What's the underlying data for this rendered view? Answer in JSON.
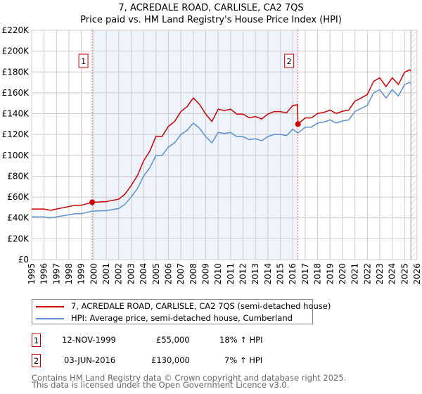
{
  "chart_data": {
    "type": "line",
    "title": "7, ACREDALE ROAD, CARLISLE, CA2 7QS",
    "subtitle": "Price paid vs. HM Land Registry's House Price Index (HPI)",
    "xlim": [
      1995,
      2026
    ],
    "ylim": [
      0,
      220000
    ],
    "x_ticks": [
      "1995",
      "1996",
      "1997",
      "1998",
      "1999",
      "2000",
      "2001",
      "2002",
      "2003",
      "2004",
      "2005",
      "2006",
      "2007",
      "2008",
      "2009",
      "2010",
      "2011",
      "2012",
      "2013",
      "2014",
      "2015",
      "2016",
      "2017",
      "2018",
      "2019",
      "2020",
      "2021",
      "2022",
      "2023",
      "2024",
      "2025",
      "2026"
    ],
    "y_ticks": [
      "£0",
      "£20K",
      "£40K",
      "£60K",
      "£80K",
      "£100K",
      "£120K",
      "£140K",
      "£160K",
      "£180K",
      "£200K",
      "£220K"
    ],
    "grid": true,
    "series": [
      {
        "name": "7, ACREDALE ROAD, CARLISLE, CA2 7QS (semi-detached house)",
        "color": "#cc0000",
        "x": [
          1995,
          1996,
          1996.5,
          1997,
          1998,
          1998.5,
          1999,
          1999.87,
          2001,
          2002,
          2002.5,
          2003,
          2003.5,
          2004,
          2004.5,
          2005,
          2005.5,
          2006,
          2006.5,
          2007,
          2007.5,
          2008,
          2008.5,
          2009,
          2009.5,
          2010,
          2010.5,
          2011,
          2011.5,
          2012,
          2012.5,
          2013,
          2013.5,
          2014,
          2014.5,
          2015,
          2015.5,
          2016,
          2016.38,
          2016.42,
          2017,
          2017.5,
          2018,
          2018.5,
          2019,
          2019.5,
          2020,
          2020.5,
          2021,
          2021.5,
          2022,
          2022.5,
          2023,
          2023.5,
          2024,
          2024.5,
          2025,
          2025.4,
          2025.5
        ],
        "y": [
          48500,
          48500,
          47300,
          48500,
          50900,
          52100,
          52100,
          55000,
          55600,
          58000,
          62700,
          71000,
          80400,
          94600,
          104000,
          118300,
          118300,
          127800,
          132500,
          142000,
          146700,
          155000,
          149000,
          139600,
          132500,
          144300,
          143000,
          144300,
          139600,
          139600,
          136000,
          137200,
          134900,
          139600,
          142000,
          142000,
          140800,
          147900,
          148500,
          130000,
          135900,
          135900,
          140200,
          141200,
          143400,
          140200,
          142300,
          143400,
          152000,
          155000,
          158400,
          171000,
          174400,
          165900,
          174400,
          168000,
          179800,
          182000,
          181000
        ]
      },
      {
        "name": "HPI: Average price, semi-detached house, Cumberland",
        "color": "#5b8fd1",
        "x": [
          1995,
          1996,
          1996.5,
          1997,
          1998,
          1998.5,
          1999,
          1999.87,
          2001,
          2002,
          2002.5,
          2003,
          2003.5,
          2004,
          2004.5,
          2005,
          2005.5,
          2006,
          2006.5,
          2007,
          2007.5,
          2008,
          2008.5,
          2009,
          2009.5,
          2010,
          2010.5,
          2011,
          2011.5,
          2012,
          2012.5,
          2013,
          2013.5,
          2014,
          2014.5,
          2015,
          2015.5,
          2016,
          2016.42,
          2017,
          2017.5,
          2018,
          2018.5,
          2019,
          2019.5,
          2020,
          2020.5,
          2021,
          2021.5,
          2022,
          2022.5,
          2023,
          2023.5,
          2024,
          2024.5,
          2025,
          2025.4,
          2025.5
        ],
        "y": [
          41000,
          41000,
          40000,
          41000,
          43000,
          44000,
          44000,
          46500,
          47000,
          49000,
          53000,
          60000,
          68000,
          80000,
          88000,
          100000,
          100000,
          108000,
          112000,
          120000,
          124000,
          131000,
          126000,
          118000,
          112000,
          122000,
          121000,
          122000,
          118000,
          118000,
          115000,
          116000,
          114000,
          118000,
          120000,
          120000,
          119000,
          125000,
          121500,
          127000,
          127000,
          131000,
          132000,
          134000,
          131000,
          133000,
          134000,
          142000,
          145000,
          148000,
          160000,
          163000,
          155000,
          163000,
          157000,
          168000,
          170000,
          169000
        ]
      }
    ],
    "sales": [
      {
        "label": "1",
        "date": "12-NOV-1999",
        "x": 1999.87,
        "price_value": 55000,
        "price": "£55,000",
        "hpi_diff": "18% ↑ HPI"
      },
      {
        "label": "2",
        "date": "03-JUN-2016",
        "x": 2016.42,
        "price_value": 130000,
        "price": "£130,000",
        "hpi_diff": "7% ↑ HPI"
      }
    ],
    "shaded_range": [
      1999.87,
      2016.42
    ],
    "forecast_from": 2025.5,
    "legend_position": "below"
  },
  "footer": {
    "line1": "Contains HM Land Registry data © Crown copyright and database right 2025.",
    "line2": "This data is licensed under the Open Government Licence v3.0."
  }
}
